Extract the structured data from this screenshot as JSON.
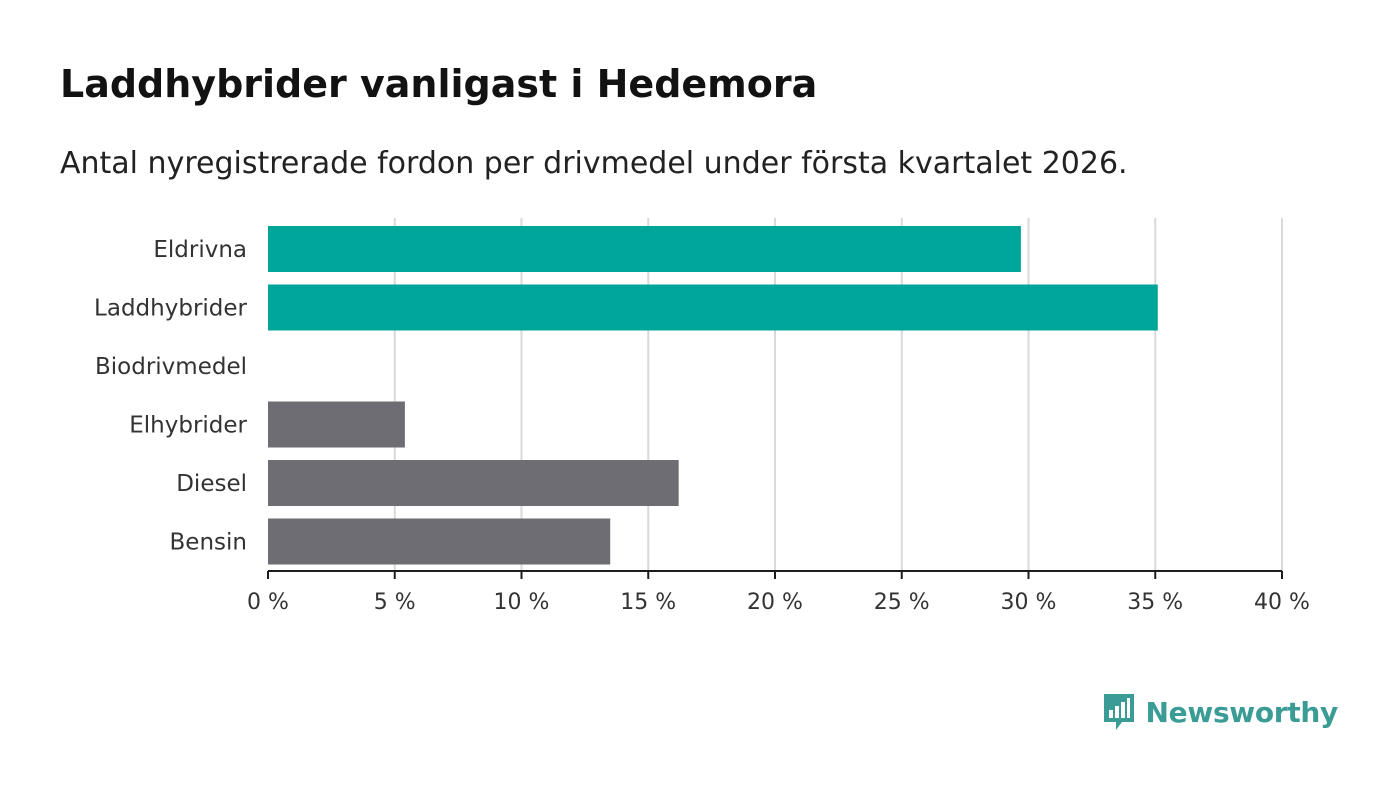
{
  "title": "Laddhybrider vanligast i Hedemora",
  "subtitle": "Antal nyregistrerade fordon per drivmedel under första kvartalet 2026.",
  "brand": {
    "name": "Newsworthy",
    "icon": "newsworthy-logo-icon",
    "color": "#3a9c95"
  },
  "colors": {
    "highlight": "#00a599",
    "default": "#6e6d73",
    "grid": "#d9d9d9",
    "axis": "#1d1d1b"
  },
  "chart_data": {
    "type": "bar",
    "orientation": "horizontal",
    "categories": [
      "Eldrivna",
      "Laddhybrider",
      "Biodrivmedel",
      "Elhybrider",
      "Diesel",
      "Bensin"
    ],
    "values": [
      29.7,
      35.1,
      0,
      5.4,
      16.2,
      13.5
    ],
    "highlighted": [
      true,
      true,
      false,
      false,
      false,
      false
    ],
    "xlim": [
      0,
      40
    ],
    "xticks": [
      0,
      5,
      10,
      15,
      20,
      25,
      30,
      35,
      40
    ],
    "xtick_labels": [
      "0 %",
      "5 %",
      "10 %",
      "15 %",
      "20 %",
      "25 %",
      "30 %",
      "35 %",
      "40 %"
    ],
    "grid": "vertical",
    "legend": "none"
  }
}
